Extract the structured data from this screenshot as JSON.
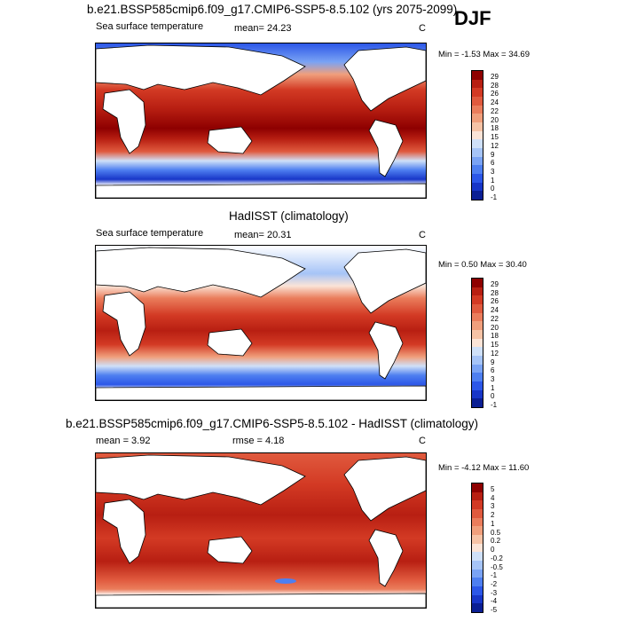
{
  "corner_label": "DJF",
  "colors": {
    "abs_scale": [
      "#0b1f94",
      "#1836c8",
      "#2c57e8",
      "#4e7ff0",
      "#7aa3f4",
      "#a6c4f7",
      "#cfe0f8",
      "#fbe4d7",
      "#f6c3a6",
      "#f09f7c",
      "#ea7d5c",
      "#e05a3e",
      "#d33a24",
      "#b81f12",
      "#8e0000"
    ],
    "diff_scale": [
      "#0b1f94",
      "#1836c8",
      "#2c57e8",
      "#4e7ff0",
      "#7aa3f4",
      "#a6c4f7",
      "#cfe0f8",
      "#fbe4d7",
      "#f6c3a6",
      "#f09f7c",
      "#ea7d5c",
      "#e05a3e",
      "#d33a24",
      "#b81f12",
      "#8e0000"
    ]
  },
  "panels": [
    {
      "title": "b.e21.BSSP585cmip6.f09_g17.CMIP6-SSP5-8.5.102 (yrs 2075-2099)",
      "subtitle_left": "Sea surface temperature",
      "stat": "mean=  24.23",
      "units": "C",
      "minmax": "Min =  -1.53 Max =  34.69",
      "colorbar_labels": [
        "29",
        "28",
        "26",
        "24",
        "22",
        "20",
        "18",
        "15",
        "12",
        "9",
        "6",
        "3",
        "1",
        "0",
        "-1"
      ]
    },
    {
      "title": "HadISST (climatology)",
      "subtitle_left": "Sea surface temperature",
      "stat": "mean=  20.31",
      "units": "C",
      "minmax": "Min =   0.50 Max =  30.40",
      "colorbar_labels": [
        "29",
        "28",
        "26",
        "24",
        "22",
        "20",
        "18",
        "15",
        "12",
        "9",
        "6",
        "3",
        "1",
        "0",
        "-1"
      ]
    },
    {
      "title": "b.e21.BSSP585cmip6.f09_g17.CMIP6-SSP5-8.5.102 - HadISST (climatology)",
      "subtitle_left": "mean =    3.92",
      "stat": "rmse =    4.18",
      "units": "C",
      "minmax": "Min =  -4.12 Max =  11.60",
      "colorbar_labels": [
        "5",
        "4",
        "3",
        "2",
        "1",
        "0.5",
        "0.2",
        "0",
        "-0.2",
        "-0.5",
        "-1",
        "-2",
        "-3",
        "-4",
        "-5"
      ]
    }
  ]
}
